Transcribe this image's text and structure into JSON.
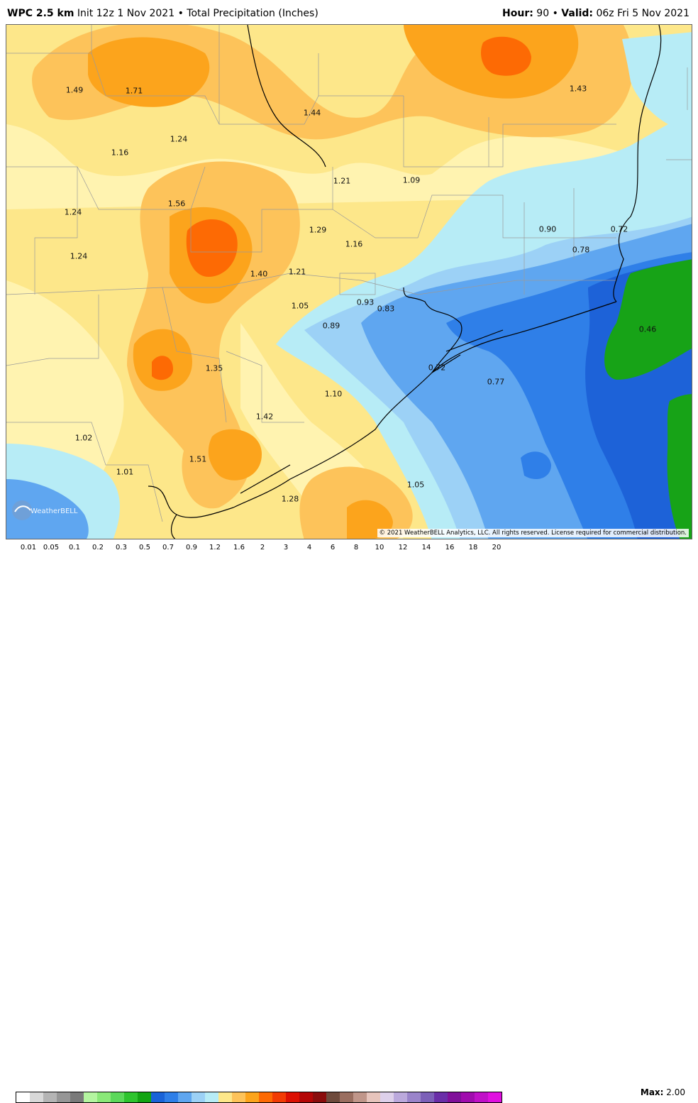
{
  "header": {
    "model": "WPC 2.5 km",
    "init": "Init 12z 1 Nov 2021",
    "bullet": "•",
    "product": "Total Precipitation (Inches)",
    "hour_label": "Hour:",
    "hour_value": "90",
    "valid_label": "Valid:",
    "valid_value": "06z Fri 5 Nov 2021"
  },
  "map": {
    "colors": {
      "land_light": "#fff3b0",
      "yellow": "#fde78a",
      "light_orange": "#fdc35a",
      "orange": "#fca41c",
      "dark_orange": "#fd6a04",
      "light_blue": "#b7ecf6",
      "sky_blue": "#9cd1f6",
      "mid_blue": "#5fa6f0",
      "blue": "#2f7fe8",
      "deep_blue": "#1d62d8",
      "green": "#17a317"
    },
    "values": [
      "1.49",
      "1.71",
      "1.44",
      "1.43",
      "1.24",
      "1.16",
      "1.21",
      "1.09",
      "1.24",
      "1.56",
      "1.29",
      "1.16",
      "0.90",
      "0.72",
      "1.24",
      "0.78",
      "1.40",
      "1.21",
      "1.05",
      "0.93",
      "0.83",
      "0.89",
      "0.46",
      "1.35",
      "0.72",
      "0.77",
      "1.10",
      "1.42",
      "1.02",
      "1.51",
      "1.01",
      "1.05",
      "1.28"
    ],
    "copyright": "© 2021 WeatherBELL Analytics, LLC. All rights reserved. License required for commercial distribution.",
    "logo_text": "WeatherBELL"
  },
  "legend": {
    "ticks": [
      "0.01",
      "0.05",
      "0.1",
      "0.2",
      "0.3",
      "0.5",
      "0.7",
      "0.9",
      "1.2",
      "1.6",
      "2",
      "3",
      "4",
      "6",
      "8",
      "10",
      "12",
      "14",
      "16",
      "18",
      "20"
    ],
    "colors": [
      "#ffffff",
      "#d8d8d8",
      "#b4b4b4",
      "#969696",
      "#7a7a7a",
      "#b4f5a0",
      "#8ae878",
      "#5cd85a",
      "#2ec42e",
      "#13a413",
      "#1a63d8",
      "#2f7fe8",
      "#5fa6f0",
      "#9cd1f6",
      "#b7ecf6",
      "#fde78a",
      "#fdc35a",
      "#fca41c",
      "#fd6a04",
      "#f23b04",
      "#dc1002",
      "#b40606",
      "#8a0c0c",
      "#6e4a3c",
      "#9a6e60",
      "#c0968a",
      "#e6c4bc",
      "#ddd0ea",
      "#bba9dc",
      "#9a84ca",
      "#7c60b8",
      "#6a2ea8",
      "#80109a",
      "#a00cae",
      "#c010c8",
      "#e010e0"
    ],
    "max_label": "Max:",
    "max_value": "2.00"
  }
}
